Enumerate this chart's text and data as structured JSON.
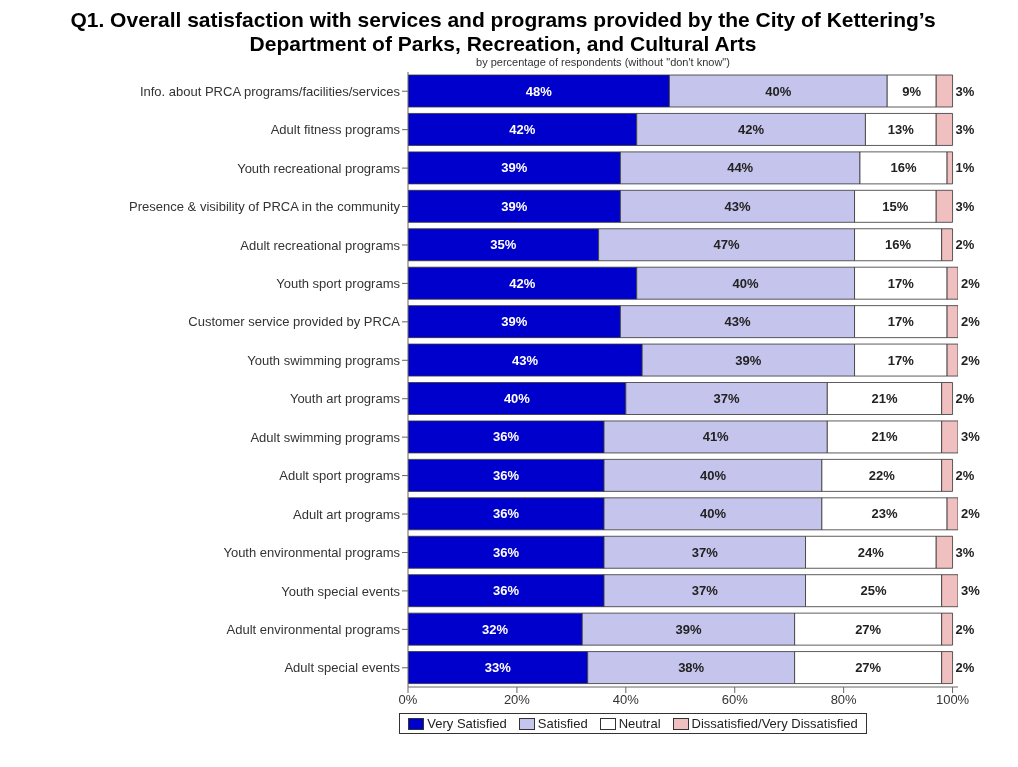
{
  "chart_data": {
    "type": "bar",
    "orientation": "horizontal",
    "stacked": true,
    "title": "Q1. Overall satisfaction with services and programs provided by the City of Kettering’s Department of Parks, Recreation, and Cultural Arts",
    "subtitle": "by percentage of respondents (without \"don't know\")",
    "categories": [
      "Info. about PRCA programs/facilities/services",
      "Adult fitness programs",
      "Youth recreational programs",
      "Presence & visibility of PRCA in the community",
      "Adult recreational programs",
      "Youth sport programs",
      "Customer service provided by PRCA",
      "Youth swimming programs",
      "Youth art programs",
      "Adult swimming programs",
      "Adult sport programs",
      "Adult art programs",
      "Youth environmental programs",
      "Youth special events",
      "Adult environmental programs",
      "Adult special events"
    ],
    "series": [
      {
        "name": "Very Satisfied",
        "color": "#0000cc",
        "values": [
          48,
          42,
          39,
          39,
          35,
          42,
          39,
          43,
          40,
          36,
          36,
          36,
          36,
          36,
          32,
          33
        ],
        "value_labels": [
          "48%",
          "42%",
          "39%",
          "39%",
          "35%",
          "42%",
          "39%",
          "43%",
          "40%",
          "36%",
          "36%",
          "36%",
          "36%",
          "36%",
          "32%",
          "33%"
        ]
      },
      {
        "name": "Satisfied",
        "color": "#c4c4ec",
        "values": [
          40,
          42,
          44,
          43,
          47,
          40,
          43,
          39,
          37,
          41,
          40,
          40,
          37,
          37,
          39,
          38
        ],
        "value_labels": [
          "40%",
          "42%",
          "44%",
          "43%",
          "47%",
          "40%",
          "43%",
          "39%",
          "37%",
          "41%",
          "40%",
          "40%",
          "37%",
          "37%",
          "39%",
          "38%"
        ]
      },
      {
        "name": "Neutral",
        "color": "#ffffff",
        "values": [
          9,
          13,
          16,
          15,
          16,
          17,
          17,
          17,
          21,
          21,
          22,
          23,
          24,
          25,
          27,
          27
        ],
        "value_labels": [
          "9%",
          "13%",
          "16%",
          "15%",
          "16%",
          "17%",
          "17%",
          "17%",
          "21%",
          "21%",
          "22%",
          "23%",
          "24%",
          "25%",
          "27%",
          "27%"
        ]
      },
      {
        "name": "Dissatisfied/Very Dissatisfied",
        "color": "#f0c0c0",
        "values": [
          3,
          3,
          1,
          3,
          2,
          2,
          2,
          2,
          2,
          3,
          2,
          2,
          3,
          3,
          2,
          2
        ],
        "value_labels": [
          "3%",
          "3%",
          "1%",
          "3%",
          "2%",
          "2%",
          "2%",
          "2%",
          "2%",
          "3%",
          "2%",
          "2%",
          "3%",
          "3%",
          "2%",
          "2%"
        ]
      }
    ],
    "xlim": [
      0,
      101
    ],
    "xticks": [
      {
        "value": 0,
        "label": "0%"
      },
      {
        "value": 20,
        "label": "20%"
      },
      {
        "value": 40,
        "label": "40%"
      },
      {
        "value": 60,
        "label": "60%"
      },
      {
        "value": 80,
        "label": "80%"
      },
      {
        "value": 100,
        "label": "100%"
      }
    ],
    "legend": "bottom",
    "grid": false
  }
}
